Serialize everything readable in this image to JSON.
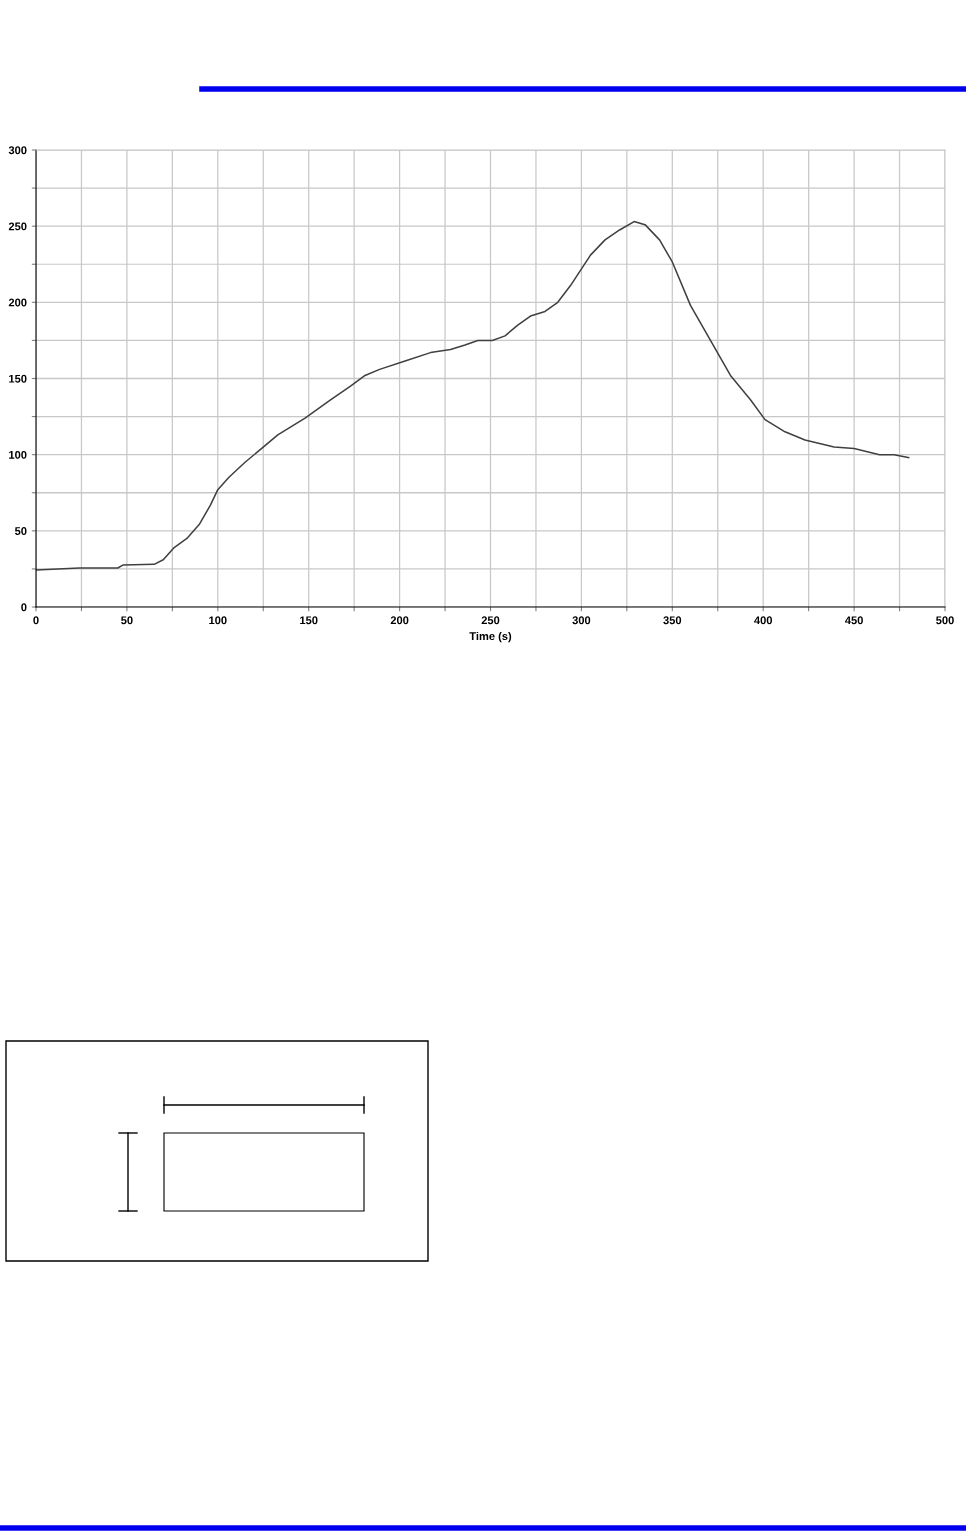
{
  "chart_data": {
    "type": "line",
    "xlabel": "Time (s)",
    "x": [
      0,
      24,
      45,
      48,
      65,
      70,
      76,
      83,
      90,
      96,
      100,
      106,
      115,
      124,
      133,
      148,
      162,
      173,
      181,
      189,
      203,
      217,
      228,
      236,
      243,
      251,
      258,
      265,
      272,
      280,
      287,
      294,
      305,
      313,
      321,
      329,
      335,
      343,
      350,
      360,
      371,
      382,
      393,
      401,
      412,
      423,
      439,
      450,
      464,
      472,
      480
    ],
    "series": [
      {
        "color": "#404040",
        "values": [
          24.3,
          25.6,
          25.6,
          27.6,
          28,
          31,
          39,
          45,
          54.5,
          67,
          77,
          85,
          95,
          104,
          113,
          124,
          136,
          145,
          152,
          156,
          161.5,
          167,
          169,
          172,
          175,
          175,
          178,
          185,
          191,
          194,
          200,
          211,
          231,
          241,
          247.5,
          253,
          251,
          241,
          226.5,
          198,
          175,
          152,
          136,
          123,
          115,
          109.6,
          105,
          104,
          100,
          100,
          98
        ]
      }
    ],
    "xlim": [
      0,
      500
    ],
    "xticks": [
      0,
      {
        "value": 25,
        "label": null
      },
      50,
      {
        "value": 75,
        "label": null
      },
      100,
      {
        "value": 125,
        "label": null
      },
      150,
      {
        "value": 175,
        "label": null
      },
      200,
      {
        "value": 225,
        "label": null
      },
      250,
      {
        "value": 275,
        "label": null
      },
      300,
      {
        "value": 325,
        "label": null
      },
      350,
      {
        "value": 375,
        "label": null
      },
      400,
      {
        "value": 425,
        "label": null
      },
      450,
      {
        "value": 475,
        "label": null
      },
      500
    ],
    "ylim": [
      0,
      300
    ],
    "yticks": [
      0,
      {
        "value": 25,
        "label": null
      },
      50,
      {
        "value": 75,
        "label": null
      },
      100,
      {
        "value": 125,
        "label": null
      },
      150,
      {
        "value": 175,
        "label": null
      },
      200,
      {
        "value": 225,
        "label": null
      },
      250,
      {
        "value": 275,
        "label": null
      },
      300
    ],
    "grid": true,
    "legend": false,
    "marker": "none",
    "line_style": "solid"
  }
}
